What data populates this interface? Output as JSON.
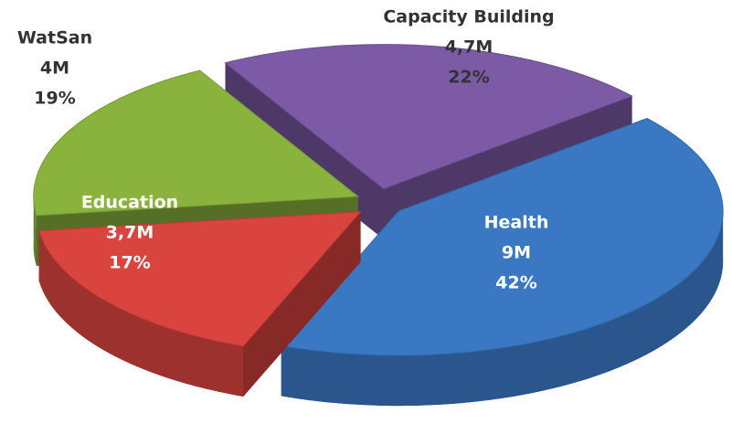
{
  "chart_data": {
    "type": "pie",
    "categories": [
      "Health",
      "Education",
      "WatSan",
      "Capacity Building"
    ],
    "values": [
      42,
      17,
      19,
      22
    ],
    "value_labels": [
      "42%",
      "17%",
      "19%",
      "22%"
    ],
    "amounts": [
      9,
      3.7,
      4,
      4.7
    ],
    "amount_labels": [
      "9M",
      "3,7M",
      "4M",
      "4,7M"
    ],
    "colors": [
      "#3a78c4",
      "#d9443f",
      "#8ab33e",
      "#7d5aa6"
    ]
  }
}
